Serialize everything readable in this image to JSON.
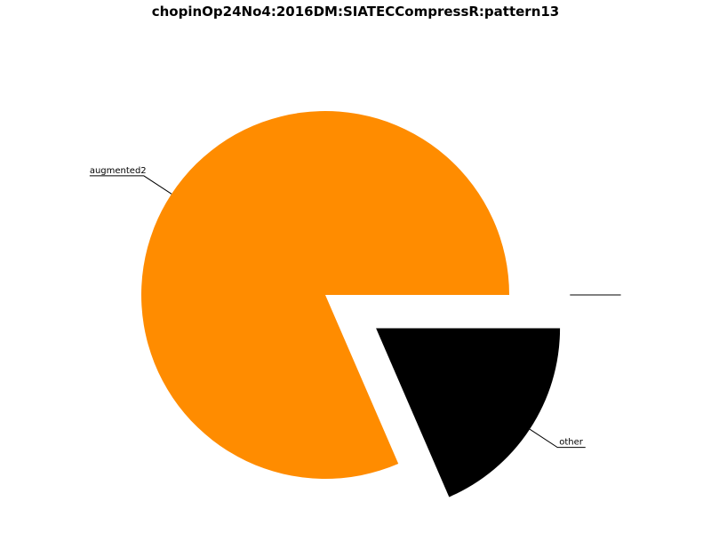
{
  "chart_data": {
    "type": "pie",
    "title": "chopinOp24No4:2016DM:SIATECCompressR:pattern13",
    "slices": [
      {
        "label": "augmented2",
        "value": 81.5,
        "color": "#ff8c00",
        "exploded": false
      },
      {
        "label": "other",
        "value": 18.5,
        "color": "#000000",
        "exploded": true
      },
      {
        "label": "",
        "value": 0.0,
        "color": "#000000",
        "exploded": true
      }
    ],
    "start_angle_deg": 0,
    "direction": "counterclockwise",
    "legend": "none"
  }
}
